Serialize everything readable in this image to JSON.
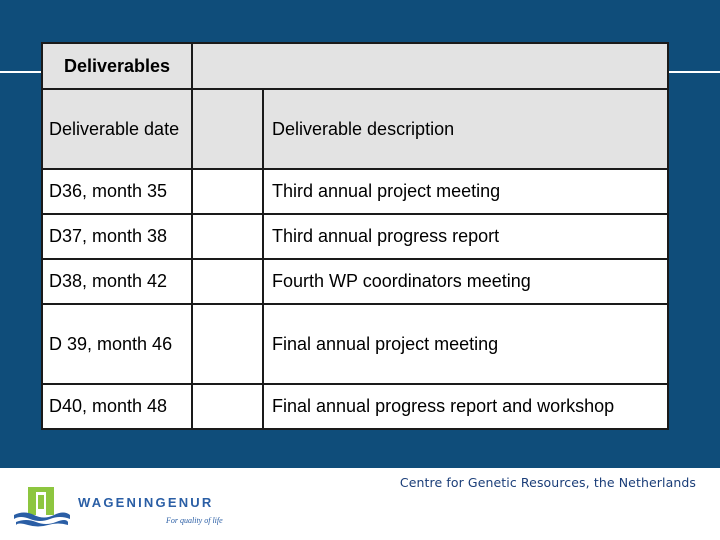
{
  "table": {
    "title": "Deliverables",
    "header": {
      "date": "Deliverable date",
      "description": "Deliverable description"
    },
    "rows": [
      {
        "date": "D36, month 35",
        "description": "Third annual project meeting"
      },
      {
        "date": "D37, month 38",
        "description": "Third annual progress report"
      },
      {
        "date": "D38, month 42",
        "description": "Fourth WP coordinators meeting"
      },
      {
        "date": "D 39, month 46",
        "description": "Final annual project meeting"
      },
      {
        "date": "D40, month 48",
        "description": "Final annual progress report and workshop"
      }
    ]
  },
  "footer": {
    "organization": "Centre for Genetic Resources, the Netherlands",
    "logo_wordmark": "WAGENINGENUR",
    "logo_tagline": "For quality of life"
  },
  "colors": {
    "background": "#0f4d7a",
    "header_fill": "#e3e3e3",
    "footer_text": "#1a3d78",
    "logo_green": "#8dc63f",
    "logo_blue": "#2a5ea5"
  }
}
